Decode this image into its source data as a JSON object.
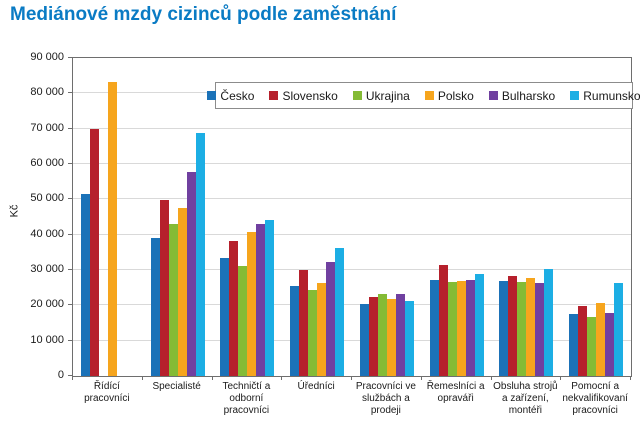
{
  "title": "Mediánové mzdy cizinců podle zaměstnání",
  "title_color": "#0a7bc4",
  "chart_data": {
    "type": "bar",
    "title": "Mediánové mzdy cizinců podle zaměstnání",
    "xlabel": "",
    "ylabel": "Kč",
    "ylim": [
      0,
      90000
    ],
    "ytick_step": 10000,
    "ytick_labels": [
      "0",
      "10 000",
      "20 000",
      "30 000",
      "40 000",
      "50 000",
      "60 000",
      "70 000",
      "80 000",
      "90 000"
    ],
    "grid": true,
    "legend_position": "top-inside",
    "categories": [
      "Řídící\npracovníci",
      "Specialisté",
      "Techničtí a\nodborní\npracovníci",
      "Úředníci",
      "Pracovníci ve\nslužbách a\nprodeji",
      "Řemeslníci a\nopraváři",
      "Obsluha strojů\na zařízení,\nmontéři",
      "Pomocní a\nnekvalifikovaní\npracovníci"
    ],
    "series": [
      {
        "name": "Česko",
        "color": "#1b72b8",
        "values": [
          51500,
          39100,
          33500,
          25400,
          20400,
          27200,
          26900,
          17500
        ]
      },
      {
        "name": "Slovensko",
        "color": "#b6202c",
        "values": [
          70000,
          49700,
          38200,
          29900,
          22500,
          31500,
          28400,
          19900
        ]
      },
      {
        "name": "Ukrajina",
        "color": "#84bb35",
        "values": [
          null,
          43100,
          31100,
          24400,
          23100,
          26700,
          26700,
          16700
        ]
      },
      {
        "name": "Polsko",
        "color": "#f6a51d",
        "values": [
          83200,
          47600,
          40800,
          26200,
          21900,
          26900,
          27600,
          20800
        ]
      },
      {
        "name": "Bulharsko",
        "color": "#7040a0",
        "values": [
          null,
          57700,
          43000,
          32400,
          23300,
          27300,
          26200,
          17900
        ]
      },
      {
        "name": "Rumunsko",
        "color": "#1caee4",
        "values": [
          null,
          68800,
          44200,
          36100,
          21200,
          29000,
          30400,
          26400
        ]
      }
    ]
  }
}
